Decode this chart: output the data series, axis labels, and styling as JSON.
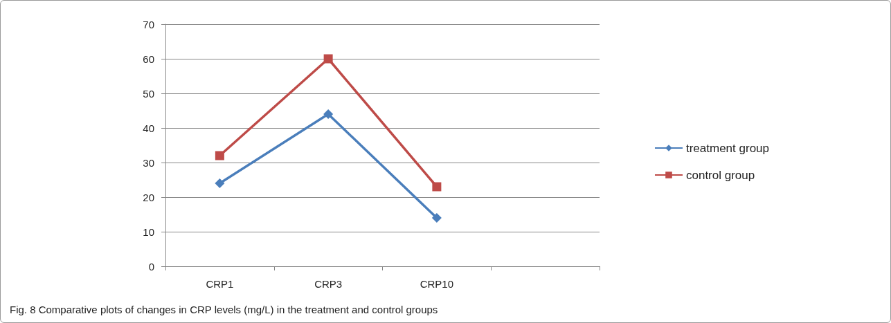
{
  "chart_data": {
    "type": "line",
    "title": "Fig. 8 Comparative plots of changes in CRP levels (mg/L) in the treatment and control groups",
    "categories": [
      "CRP1",
      "CRP3",
      "CRP10",
      null
    ],
    "series": [
      {
        "name": "treatment group",
        "color": "#4a7ebb",
        "marker": "diamond",
        "values": [
          24,
          44,
          14,
          null
        ]
      },
      {
        "name": "control group",
        "color": "#be4b48",
        "marker": "square",
        "values": [
          32,
          60,
          23,
          null
        ]
      }
    ],
    "ylim": [
      0,
      70
    ],
    "yticks": [
      0,
      10,
      20,
      30,
      40,
      50,
      60,
      70
    ],
    "grid": "y",
    "legend": "right",
    "line_style": "solid"
  }
}
